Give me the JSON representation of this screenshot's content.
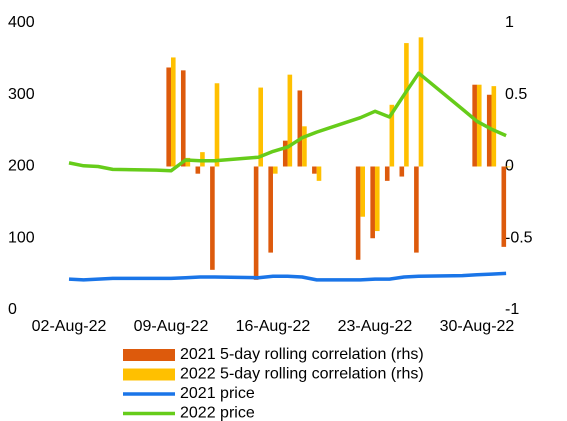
{
  "chart_data": {
    "type": "combo",
    "x": [
      "02-Aug-22",
      "03-Aug-22",
      "04-Aug-22",
      "05-Aug-22",
      "08-Aug-22",
      "09-Aug-22",
      "10-Aug-22",
      "11-Aug-22",
      "12-Aug-22",
      "15-Aug-22",
      "16-Aug-22",
      "17-Aug-22",
      "18-Aug-22",
      "19-Aug-22",
      "22-Aug-22",
      "23-Aug-22",
      "24-Aug-22",
      "25-Aug-22",
      "26-Aug-22",
      "29-Aug-22",
      "30-Aug-22",
      "31-Aug-22",
      "01-Sep-22"
    ],
    "xticks": [
      "02-Aug-22",
      "09-Aug-22",
      "16-Aug-22",
      "23-Aug-22",
      "30-Aug-22"
    ],
    "ylim": [
      0,
      400
    ],
    "yticks": [
      0,
      100,
      200,
      300,
      400
    ],
    "y2lim": [
      -1,
      1
    ],
    "y2ticks": [
      -1,
      -0.5,
      0,
      0.5,
      1
    ],
    "series": [
      {
        "name": "2021 5-day rolling correlation (rhs)",
        "kind": "bar",
        "axis": "y2",
        "color": "#dd5a0c",
        "values": [
          null,
          null,
          null,
          null,
          null,
          0.69,
          0.67,
          -0.05,
          -0.72,
          -0.79,
          -0.6,
          0.18,
          0.53,
          -0.05,
          -0.65,
          -0.5,
          -0.1,
          -0.07,
          -0.6,
          null,
          0.57,
          0.5,
          -0.56
        ]
      },
      {
        "name": "2022 5-day rolling correlation (rhs)",
        "kind": "bar",
        "axis": "y2",
        "color": "#ffc000",
        "values": [
          null,
          null,
          null,
          null,
          null,
          0.76,
          0.06,
          0.1,
          0.58,
          0.55,
          -0.05,
          0.64,
          0.28,
          -0.1,
          -0.35,
          -0.45,
          0.43,
          0.86,
          0.9,
          null,
          0.57,
          0.56,
          0.0
        ]
      },
      {
        "name": "2021 price",
        "kind": "line",
        "color": "#1a75e8",
        "values": [
          43,
          42,
          43,
          44,
          44,
          44,
          45,
          46,
          46,
          45,
          47,
          47,
          46,
          42,
          42,
          43,
          43,
          46,
          47,
          48,
          49,
          50,
          51
        ]
      },
      {
        "name": "2022 price",
        "kind": "line",
        "color": "#66cc1a",
        "values": [
          205,
          201,
          200,
          196,
          195,
          194,
          209,
          208,
          208,
          213,
          221,
          227,
          240,
          248,
          268,
          277,
          269,
          300,
          330,
          280,
          263,
          252,
          243
        ]
      }
    ]
  }
}
